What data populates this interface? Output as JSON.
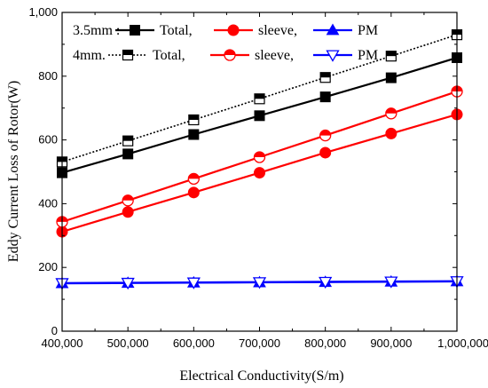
{
  "chart_data": {
    "type": "line",
    "title": "",
    "xlabel": "Electrical Conductivity(S/m)",
    "ylabel": "Eddy Current Loss of Rotor(W)",
    "x": [
      400000,
      500000,
      600000,
      700000,
      800000,
      900000,
      1000000
    ],
    "x_tick_labels": [
      "400,000",
      "500,000",
      "600,000",
      "700,000",
      "800,000",
      "900,000",
      "1,000,000"
    ],
    "xlim": [
      400000,
      1000000
    ],
    "ylim": [
      0,
      1000
    ],
    "y_ticks": [
      0,
      200,
      400,
      600,
      800,
      1000
    ],
    "y_tick_labels": [
      "0",
      "200",
      "400",
      "600",
      "800",
      "1,000"
    ],
    "grid": false,
    "legend_position": "top-left",
    "legend_rows": [
      {
        "prefix": "3.5mm :",
        "entries": [
          {
            "label": "Total,",
            "series": 0
          },
          {
            "label": "sleeve,",
            "series": 1
          },
          {
            "label": "PM",
            "series": 2
          }
        ]
      },
      {
        "prefix": "4mm.",
        "entries": [
          {
            "label": "Total,",
            "series": 3
          },
          {
            "label": "sleeve,",
            "series": 4
          },
          {
            "label": "PM",
            "series": 5
          }
        ]
      }
    ],
    "series": [
      {
        "group": "3.5mm",
        "component": "Total",
        "color": "#000000",
        "marker": "square-filled",
        "line_style": "solid",
        "values": [
          497,
          556,
          617,
          676,
          735,
          795,
          858
        ]
      },
      {
        "group": "3.5mm",
        "component": "sleeve",
        "color": "#ff0000",
        "marker": "circle-filled",
        "line_style": "solid",
        "values": [
          312,
          374,
          435,
          497,
          560,
          620,
          680
        ]
      },
      {
        "group": "3.5mm",
        "component": "PM",
        "color": "#0000ff",
        "marker": "triangle-up-filled",
        "line_style": "solid",
        "values": [
          150,
          151,
          152,
          153,
          154,
          155,
          156
        ]
      },
      {
        "group": "4mm",
        "component": "Total",
        "color": "#000000",
        "marker": "square-half",
        "line_style": "dashed",
        "values": [
          531,
          597,
          663,
          729,
          796,
          863,
          930
        ]
      },
      {
        "group": "4mm",
        "component": "sleeve",
        "color": "#ff0000",
        "marker": "circle-half",
        "line_style": "solid",
        "values": [
          343,
          410,
          478,
          546,
          614,
          683,
          752
        ]
      },
      {
        "group": "4mm",
        "component": "PM",
        "color": "#0000ff",
        "marker": "triangle-down-open",
        "line_style": "solid",
        "values": [
          151,
          152,
          153,
          154,
          155,
          156,
          157
        ]
      }
    ]
  }
}
